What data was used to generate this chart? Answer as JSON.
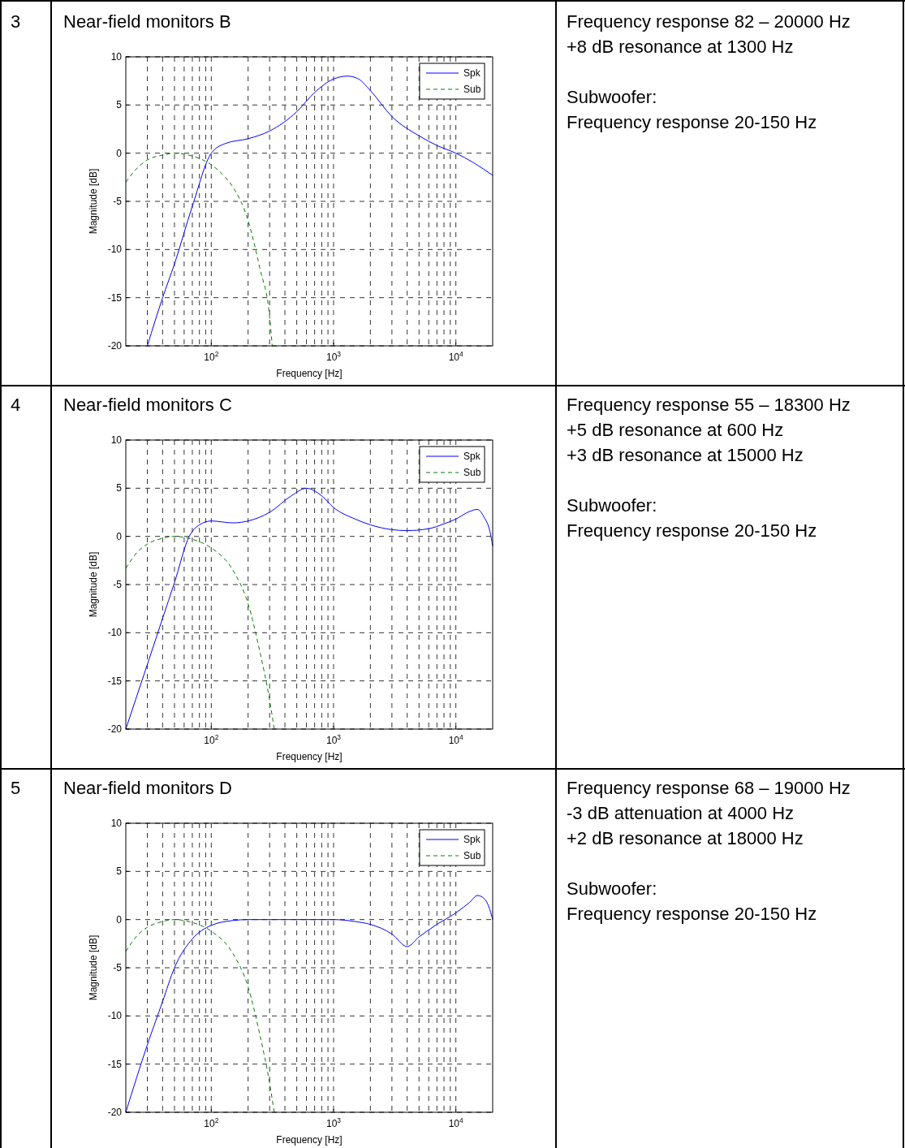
{
  "chart_data": [
    {
      "type": "other",
      "annotations": [
        "3"
      ]
    },
    {
      "type": "line",
      "title": "Near-field monitors B",
      "xlabel": "Frequency [Hz]",
      "ylabel": "Magnitude [dB]",
      "log": "x",
      "xlim": [
        20,
        20000
      ],
      "xticks": [
        {
          "value": 100,
          "label": "10$^{2}$"
        },
        {
          "value": 1000,
          "label": "10$^{3}$"
        },
        {
          "value": 10000,
          "label": "10$^{4}$"
        }
      ],
      "ylim": [
        -20,
        10
      ],
      "yticks": [
        -20,
        -15,
        -10,
        -5,
        0,
        5,
        10
      ],
      "grid": true,
      "legend": "top right",
      "series": [
        {
          "name": "Spk",
          "color": "#0000ff",
          "line_style": "solid",
          "x": [
            30,
            40,
            50,
            70,
            100,
            130,
            200,
            300,
            500,
            700,
            1000,
            1300,
            1600,
            2000,
            3000,
            5000,
            7000,
            10000,
            14000,
            20000
          ],
          "values": [
            -20,
            -15,
            -11.5,
            -5.5,
            0,
            1,
            1.5,
            2.3,
            4.3,
            6.3,
            7.7,
            8,
            7.7,
            6.5,
            3.8,
            1.8,
            0.8,
            0,
            -1,
            -2.3
          ]
        },
        {
          "name": "Sub",
          "color": "#008000",
          "line_style": "dashed",
          "x": [
            20,
            25,
            30,
            40,
            50,
            70,
            100,
            130,
            150,
            200,
            250,
            300,
            315
          ],
          "values": [
            -3,
            -1.5,
            -0.7,
            -0.2,
            0,
            -0.3,
            -1.2,
            -2.5,
            -3.5,
            -7,
            -12,
            -17,
            -20
          ]
        }
      ]
    },
    {
      "type": "other",
      "annotations": [
        "Frequency response 82 – 20000 Hz\n+8 dB resonance at 1300 Hz",
        "Subwoofer:\nFrequency response 20-150 Hz"
      ]
    },
    {
      "type": "other",
      "annotations": [
        "4"
      ]
    },
    {
      "type": "line",
      "title": "Near-field monitors C",
      "xlabel": "Frequency [Hz]",
      "ylabel": "Magnitude [dB]",
      "log": "x",
      "xlim": [
        20,
        20000
      ],
      "xticks": [
        {
          "value": 100,
          "label": "10$^{2}$"
        },
        {
          "value": 1000,
          "label": "10$^{3}$"
        },
        {
          "value": 10000,
          "label": "10$^{4}$"
        }
      ],
      "ylim": [
        -20,
        10
      ],
      "yticks": [
        -20,
        -15,
        -10,
        -5,
        0,
        5,
        10
      ],
      "grid": true,
      "legend": "top right",
      "series": [
        {
          "name": "Spk",
          "color": "#0000ff",
          "line_style": "solid",
          "x": [
            20,
            30,
            40,
            50,
            66,
            80,
            100,
            150,
            200,
            300,
            450,
            600,
            800,
            1000,
            1500,
            2000,
            3000,
            4000,
            6000,
            8000,
            10000,
            13000,
            15000,
            17000,
            19000,
            20000
          ],
          "values": [
            -20,
            -13.3,
            -8.5,
            -4.8,
            0,
            1.2,
            1.6,
            1.4,
            1.6,
            2.5,
            4.2,
            5,
            4.2,
            3,
            1.8,
            1.2,
            0.7,
            0.6,
            0.8,
            1.3,
            1.8,
            2.6,
            2.8,
            2,
            0.5,
            -1
          ]
        },
        {
          "name": "Sub",
          "color": "#008000",
          "line_style": "dashed",
          "x": [
            20,
            25,
            30,
            40,
            50,
            70,
            100,
            150,
            200,
            250,
            300,
            327
          ],
          "values": [
            -3.3,
            -1.6,
            -0.8,
            -0.2,
            0,
            -0.3,
            -1.2,
            -3.5,
            -7,
            -12,
            -17,
            -20
          ]
        }
      ]
    },
    {
      "type": "other",
      "annotations": [
        "Frequency response 55 – 18300 Hz\n+5 dB resonance at 600 Hz\n+3 dB resonance at 15000 Hz",
        "Subwoofer:\nFrequency response 20-150 Hz"
      ]
    },
    {
      "type": "other",
      "annotations": [
        "5"
      ]
    },
    {
      "type": "line",
      "title": "Near-field monitors D",
      "xlabel": "Frequency [Hz]",
      "ylabel": "Magnitude [dB]",
      "log": "x",
      "xlim": [
        20,
        20000
      ],
      "xticks": [
        {
          "value": 100,
          "label": "10$^{2}$"
        },
        {
          "value": 1000,
          "label": "10$^{3}$"
        },
        {
          "value": 10000,
          "label": "10$^{4}$"
        }
      ],
      "ylim": [
        -20,
        10
      ],
      "yticks": [
        -20,
        -15,
        -10,
        -5,
        0,
        5,
        10
      ],
      "grid": true,
      "legend": "top right",
      "series": [
        {
          "name": "Spk",
          "color": "#0000ff",
          "line_style": "solid",
          "x": [
            20,
            30,
            40,
            50,
            70,
            100,
            150,
            200,
            1000,
            1500,
            2000,
            3000,
            4000,
            5000,
            7000,
            10000,
            13000,
            15000,
            17000,
            19000,
            20000
          ],
          "values": [
            -20,
            -13,
            -8.5,
            -5,
            -2,
            -0.6,
            -0.1,
            0,
            0,
            -0.2,
            -0.5,
            -1.5,
            -2.8,
            -1.8,
            -0.5,
            0.7,
            1.8,
            2.5,
            2.2,
            1,
            0
          ]
        },
        {
          "name": "Sub",
          "color": "#008000",
          "line_style": "dashed",
          "x": [
            20,
            25,
            30,
            40,
            50,
            70,
            100,
            150,
            200,
            250,
            300,
            327
          ],
          "values": [
            -3.3,
            -1.6,
            -0.8,
            -0.2,
            0,
            -0.3,
            -1.2,
            -3.5,
            -7,
            -12,
            -17,
            -20
          ]
        }
      ]
    },
    {
      "type": "other",
      "annotations": [
        "Frequency response 68 – 19000 Hz\n-3 dB attenuation at 4000 Hz\n+2 dB resonance at 18000 Hz",
        "Subwoofer:\nFrequency response 20-150 Hz"
      ]
    }
  ]
}
